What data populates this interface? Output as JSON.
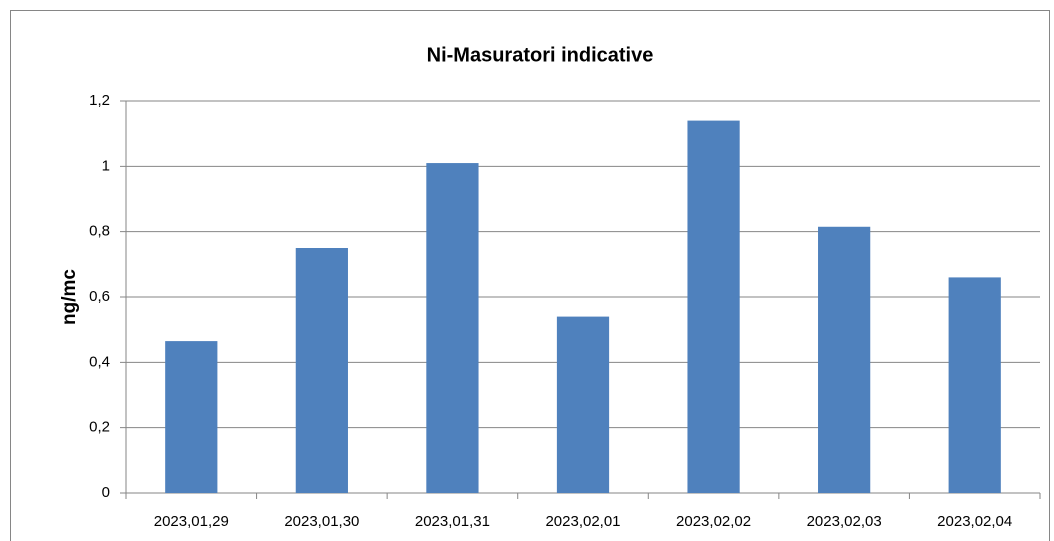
{
  "chart_data": {
    "type": "bar",
    "title": "Ni-Masuratori indicative",
    "y_label": "ng/mc",
    "categories": [
      "2023,01,29",
      "2023,01,30",
      "2023,01,31",
      "2023,02,01",
      "2023,02,02",
      "2023,02,03",
      "2023,02,04"
    ],
    "values": [
      0.465,
      0.75,
      1.01,
      0.54,
      1.14,
      0.815,
      0.66
    ],
    "color": "#4f81bd",
    "ylim": [
      0,
      1.2
    ],
    "yticks": [
      0,
      {
        "value": 0.2,
        "label": "0,2"
      },
      {
        "value": 0.4,
        "label": "0,4"
      },
      {
        "value": 0.6,
        "label": "0,6"
      },
      {
        "value": 0.8,
        "label": "0,8"
      },
      1,
      {
        "value": 1.2,
        "label": "1,2"
      }
    ],
    "grid": true
  }
}
